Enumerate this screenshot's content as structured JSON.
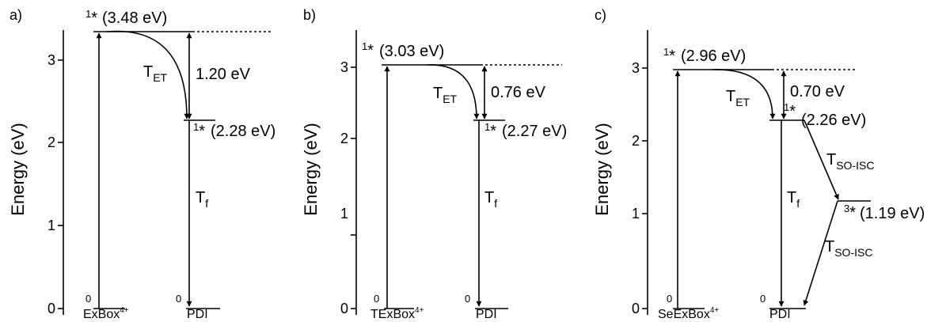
{
  "panels": [
    {
      "label": "a)",
      "axis_title": "Energy (eV)",
      "ticks": [
        "0",
        "1",
        "2",
        "3"
      ],
      "donor": {
        "name": "ExBox",
        "charge": "4+",
        "ground": "0",
        "excited_sup": "1",
        "excited_mark": "*",
        "energy": "(3.48 eV)"
      },
      "acceptor": {
        "name": "PDI",
        "ground": "0",
        "excited_sup": "1",
        "excited_mark": "*",
        "energy": "(2.28 eV)"
      },
      "gap": "1.20 eV",
      "rate_et": {
        "main": "T",
        "sub": "ET"
      },
      "rate_f": {
        "main": "T",
        "sub": "f"
      }
    },
    {
      "label": "b)",
      "axis_title": "Energy (eV)",
      "ticks": [
        "0",
        "1",
        "2",
        "3"
      ],
      "donor": {
        "name": "TExBox",
        "charge": "4+",
        "ground": "0",
        "excited_sup": "1",
        "excited_mark": "*",
        "energy": "(3.03 eV)"
      },
      "acceptor": {
        "name": "PDI",
        "ground": "0",
        "excited_sup": "1",
        "excited_mark": "*",
        "energy": "(2.27 eV)"
      },
      "gap": "0.76 eV",
      "rate_et": {
        "main": "T",
        "sub": "ET"
      },
      "rate_f": {
        "main": "T",
        "sub": "f"
      }
    },
    {
      "label": "c)",
      "axis_title": "Energy (eV)",
      "ticks": [
        "0",
        "1",
        "2",
        "3"
      ],
      "donor": {
        "name": "SeExBox",
        "charge": "4+",
        "ground": "0",
        "excited_sup": "1",
        "excited_mark": "*",
        "energy": "(2.96 eV)"
      },
      "acceptor": {
        "name": "PDI",
        "ground": "0",
        "excited_sup": "1",
        "excited_mark": "*",
        "energy": "(2.26 eV)"
      },
      "gap": "0.70 eV",
      "rate_et": {
        "main": "T",
        "sub": "ET"
      },
      "rate_f": {
        "main": "T",
        "sub": "f"
      },
      "triplet": {
        "sup": "3",
        "mark": "*",
        "energy": "(1.19 eV)"
      },
      "rate_isc_1": {
        "main": "T",
        "sub": "SO-ISC"
      },
      "rate_isc_2": {
        "main": "T",
        "sub": "SO-ISC"
      }
    }
  ]
}
